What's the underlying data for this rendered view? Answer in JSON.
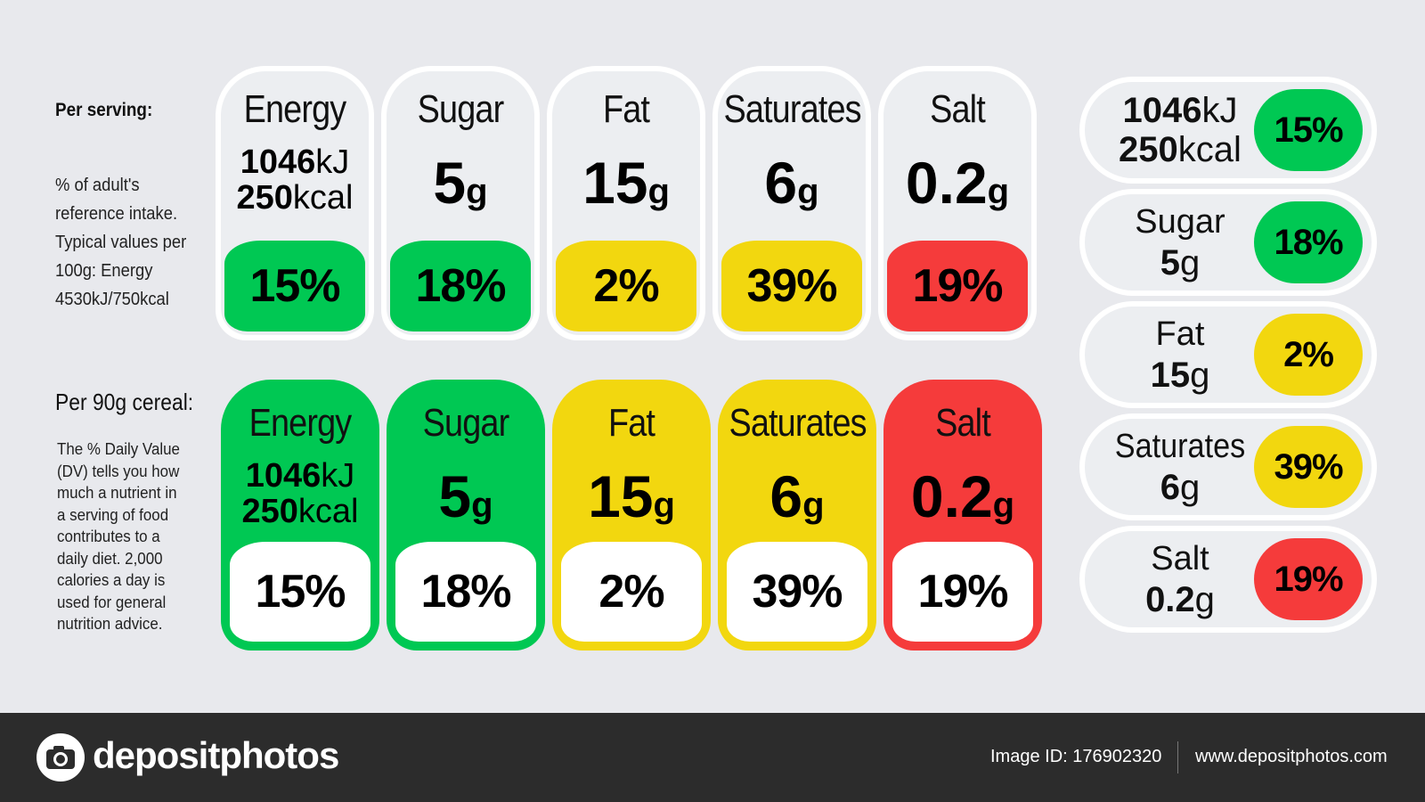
{
  "colors": {
    "green": "#00c853",
    "yellow": "#f2d70f",
    "red": "#f53b3b",
    "background": "#e8e9ed",
    "footer": "#2c2c2c"
  },
  "panel1": {
    "heading": "Per serving:",
    "desc_lines": [
      "% of adult's",
      "reference intake.",
      "Typical values per",
      "100g: Energy",
      "4530kJ/750kcal"
    ],
    "cards": [
      {
        "name": "Energy",
        "line1": "1046",
        "unit1": "kJ",
        "line2": "250",
        "unit2": "kcal",
        "pct": "15%",
        "color": "#00c853"
      },
      {
        "name": "Sugar",
        "value": "5",
        "unit": "g",
        "pct": "18%",
        "color": "#00c853"
      },
      {
        "name": "Fat",
        "value": "15",
        "unit": "g",
        "pct": "2%",
        "color": "#f2d70f"
      },
      {
        "name": "Saturates",
        "value": "6",
        "unit": "g",
        "pct": "39%",
        "color": "#f2d70f"
      },
      {
        "name": "Salt",
        "value": "0.2",
        "unit": "g",
        "pct": "19%",
        "color": "#f53b3b"
      }
    ]
  },
  "panel2": {
    "heading": "Per 90g cereal:",
    "desc_lines": [
      "The % Daily Value",
      "(DV) tells you how",
      "much a nutrient in",
      "a serving of food",
      "contributes to a",
      "daily diet. 2,000",
      "calories a day is",
      "used for general",
      "nutrition advice."
    ],
    "cards": [
      {
        "name": "Energy",
        "line1": "1046",
        "unit1": "kJ",
        "line2": "250",
        "unit2": "kcal",
        "pct": "15%",
        "color": "#00c853"
      },
      {
        "name": "Sugar",
        "value": "5",
        "unit": "g",
        "pct": "18%",
        "color": "#00c853"
      },
      {
        "name": "Fat",
        "value": "15",
        "unit": "g",
        "pct": "2%",
        "color": "#f2d70f"
      },
      {
        "name": "Saturates",
        "value": "6",
        "unit": "g",
        "pct": "39%",
        "color": "#f2d70f"
      },
      {
        "name": "Salt",
        "value": "0.2",
        "unit": "g",
        "pct": "19%",
        "color": "#f53b3b"
      }
    ]
  },
  "panel3": {
    "rows": [
      {
        "line1": "1046",
        "unit1": "kJ",
        "line2": "250",
        "unit2": "kcal",
        "pct": "15%",
        "color": "#00c853"
      },
      {
        "name": "Sugar",
        "value": "5",
        "unit": "g",
        "pct": "18%",
        "color": "#00c853"
      },
      {
        "name": "Fat",
        "value": "15",
        "unit": "g",
        "pct": "2%",
        "color": "#f2d70f"
      },
      {
        "name": "Saturates",
        "value": "6",
        "unit": "g",
        "pct": "39%",
        "color": "#f2d70f"
      },
      {
        "name": "Salt",
        "value": "0.2",
        "unit": "g",
        "pct": "19%",
        "color": "#f53b3b"
      }
    ]
  },
  "footer": {
    "brand": "depositphotos",
    "image_id": "Image ID: 176902320",
    "website": "www.depositphotos.com"
  },
  "icons": {
    "logo": "camera-icon"
  }
}
